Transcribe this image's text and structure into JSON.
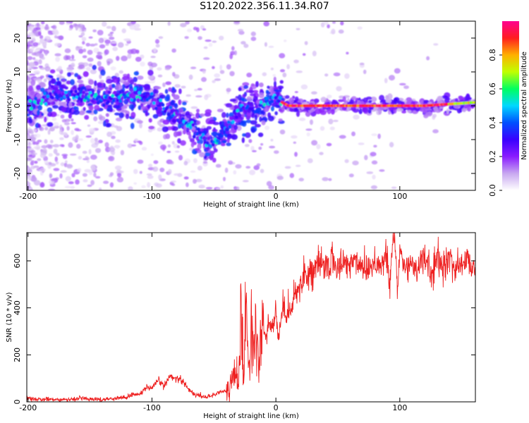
{
  "title": "S120.2022.356.11.34.R07",
  "colors": {
    "snr_line": "#ee2020",
    "frame": "#000000"
  },
  "colormap": [
    "#ffffff",
    "#c8a8f0",
    "#8a1cff",
    "#3a00ff",
    "#0050ff",
    "#00d8ff",
    "#00ff60",
    "#c0ff00",
    "#ffb000",
    "#ff1e1e",
    "#ff0090"
  ],
  "chart_data": [
    {
      "type": "heatmap",
      "title": "S120.2022.356.11.34.R07",
      "xlabel": "Height of straight line (km)",
      "ylabel": "Frequency (Hz)",
      "xlim": [
        -201,
        161
      ],
      "ylim": [
        -25,
        25
      ],
      "xticks": [
        -200,
        -100,
        0,
        100
      ],
      "yticks": [
        -20,
        -10,
        0,
        10,
        20
      ],
      "colorbar": {
        "label": "Normalized spectral amplitude",
        "range": [
          0,
          1
        ],
        "ticks": [
          0.0,
          0.2,
          0.4,
          0.6,
          0.8
        ]
      },
      "ridge": {
        "x": [
          -200,
          -180,
          -160,
          -140,
          -125,
          -110,
          -100,
          -90,
          -80,
          -70,
          -60,
          -50,
          -45,
          -40,
          -35,
          -30,
          -25,
          -20,
          -15,
          -10,
          -5,
          0,
          5,
          10,
          20,
          40,
          60,
          80,
          100,
          120,
          140,
          161
        ],
        "y": [
          0,
          3,
          3,
          2,
          3,
          3,
          2,
          0,
          -3,
          -6,
          -9,
          -11,
          -9,
          -7,
          -4,
          -2,
          -1,
          0,
          -1,
          0,
          1,
          2,
          1,
          0,
          0,
          0,
          0,
          0,
          0,
          0,
          0.5,
          1
        ]
      }
    },
    {
      "type": "line",
      "xlabel": "Height of straight line (km)",
      "ylabel": "SNR (10 * v/v)",
      "xlim": [
        -201,
        161
      ],
      "ylim": [
        0,
        720
      ],
      "xticks": [
        -200,
        -100,
        0,
        100
      ],
      "yticks": [
        0,
        200,
        400,
        600
      ],
      "series": [
        {
          "x": [
            -201,
            -190,
            -180,
            -170,
            -160,
            -150,
            -140,
            -130,
            -120,
            -115,
            -110,
            -105,
            -100,
            -95,
            -90,
            -85,
            -80,
            -75,
            -70,
            -65,
            -60,
            -55,
            -50,
            -45,
            -40,
            -35,
            -32,
            -30,
            -28,
            -26,
            -24,
            -22,
            -20,
            -18,
            -16,
            -14,
            -12,
            -10,
            -8,
            -6,
            -4,
            -2,
            0,
            2,
            4,
            6,
            8,
            10,
            12,
            14,
            16,
            18,
            20,
            22,
            25,
            30,
            35,
            40,
            45,
            50,
            55,
            60,
            65,
            70,
            75,
            80,
            85,
            90,
            92,
            94,
            96,
            98,
            100,
            105,
            110,
            115,
            120,
            125,
            130,
            135,
            140,
            145,
            150,
            155,
            158,
            160,
            161
          ],
          "y": [
            15,
            10,
            12,
            8,
            15,
            12,
            10,
            15,
            20,
            35,
            30,
            60,
            55,
            90,
            70,
            110,
            100,
            90,
            50,
            30,
            25,
            20,
            30,
            45,
            40,
            90,
            130,
            90,
            350,
            150,
            450,
            120,
            350,
            200,
            300,
            130,
            250,
            330,
            260,
            360,
            300,
            330,
            380,
            270,
            360,
            430,
            330,
            410,
            380,
            440,
            480,
            470,
            510,
            540,
            545,
            560,
            580,
            575,
            600,
            570,
            590,
            590,
            600,
            580,
            570,
            600,
            580,
            610,
            480,
            670,
            700,
            460,
            650,
            560,
            600,
            560,
            620,
            540,
            600,
            580,
            610,
            570,
            590,
            600,
            580,
            600,
            570
          ]
        }
      ]
    }
  ]
}
